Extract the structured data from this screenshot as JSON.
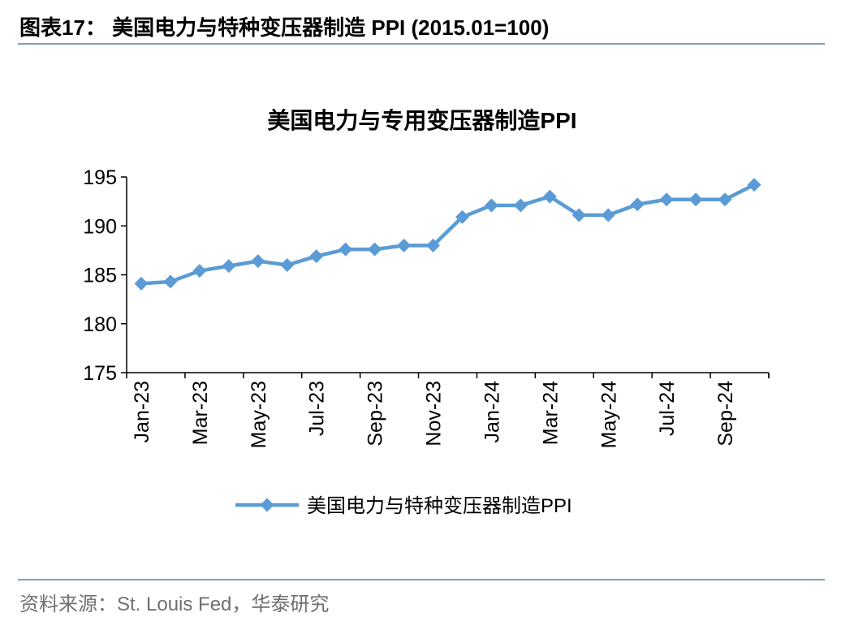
{
  "header": {
    "title": "图表17：  美国电力与特种变压器制造 PPI (2015.01=100)"
  },
  "footer": {
    "source": "资料来源：St. Louis Fed，华泰研究"
  },
  "colors": {
    "series": "#5b9bd5",
    "rule": "#7f9fb1",
    "axis": "#000000"
  },
  "chart_data": {
    "type": "line",
    "title": "美国电力与专用变压器制造PPI",
    "xlabel": "",
    "ylabel": "",
    "ylim": [
      175,
      195
    ],
    "yticks": [
      "195",
      "190",
      "185",
      "180",
      "175"
    ],
    "xtick_labels": [
      "Jan-23",
      "Mar-23",
      "May-23",
      "Jul-23",
      "Sep-23",
      "Nov-23",
      "Jan-24",
      "Mar-24",
      "May-24",
      "Jul-24",
      "Sep-24"
    ],
    "grid": false,
    "legend": "bottom",
    "x": [
      "Jan-23",
      "Feb-23",
      "Mar-23",
      "Apr-23",
      "May-23",
      "Jun-23",
      "Jul-23",
      "Aug-23",
      "Sep-23",
      "Oct-23",
      "Nov-23",
      "Dec-23",
      "Jan-24",
      "Feb-24",
      "Mar-24",
      "Apr-24",
      "May-24",
      "Jun-24",
      "Jul-24",
      "Aug-24",
      "Sep-24",
      "Oct-24"
    ],
    "series": [
      {
        "name": "美国电力与特种变压器制造PPI",
        "marker": "diamond",
        "values": [
          184.1,
          184.3,
          185.4,
          185.9,
          186.4,
          186.0,
          186.9,
          187.6,
          187.6,
          188.0,
          188.0,
          190.9,
          192.1,
          192.1,
          193.0,
          191.1,
          191.1,
          192.2,
          192.7,
          192.7,
          192.7,
          194.2
        ]
      }
    ]
  }
}
